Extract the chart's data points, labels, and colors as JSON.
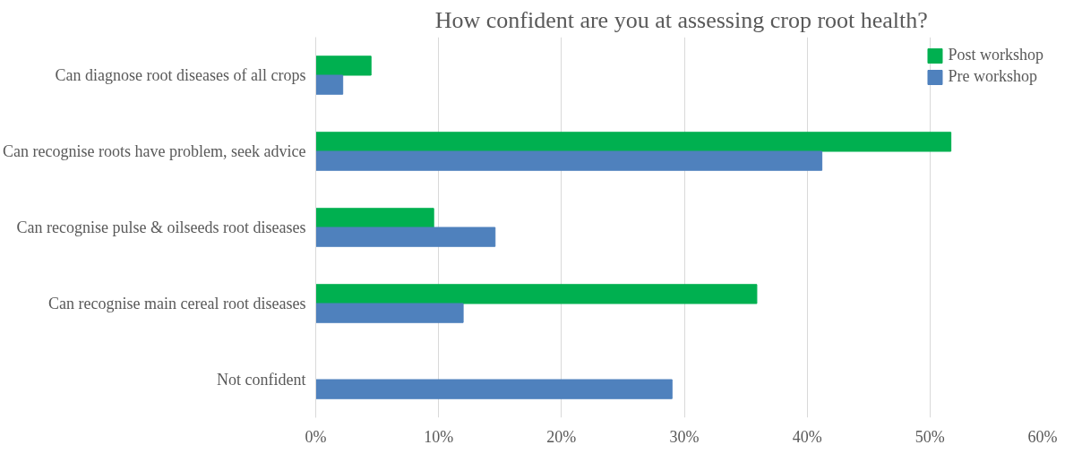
{
  "chart_data": {
    "type": "bar",
    "orientation": "horizontal",
    "title": "How confident are you at assessing  crop root health?",
    "categories": [
      "Can diagnose root diseases of all crops",
      "Can recognise roots have problem, seek advice",
      "Can recognise pulse & oilseeds root diseases",
      "Can recognise main cereal root diseases",
      "Not confident"
    ],
    "series": [
      {
        "name": "Post workshop",
        "color": "#00b050",
        "values": [
          4.5,
          51.7,
          9.6,
          35.9,
          null
        ]
      },
      {
        "name": "Pre workshop",
        "color": "#4f81bd",
        "values": [
          2.2,
          41.2,
          14.6,
          12.0,
          29.0
        ]
      }
    ],
    "xlim": [
      0,
      60
    ],
    "xticks": [
      {
        "value": 0,
        "label": "0%"
      },
      {
        "value": 10,
        "label": "10%"
      },
      {
        "value": 20,
        "label": "20%"
      },
      {
        "value": 30,
        "label": "30%"
      },
      {
        "value": 40,
        "label": "40%"
      },
      {
        "value": 50,
        "label": "50%"
      },
      {
        "value": 60,
        "label": "60%"
      }
    ],
    "grid": "x",
    "legend": "right"
  }
}
